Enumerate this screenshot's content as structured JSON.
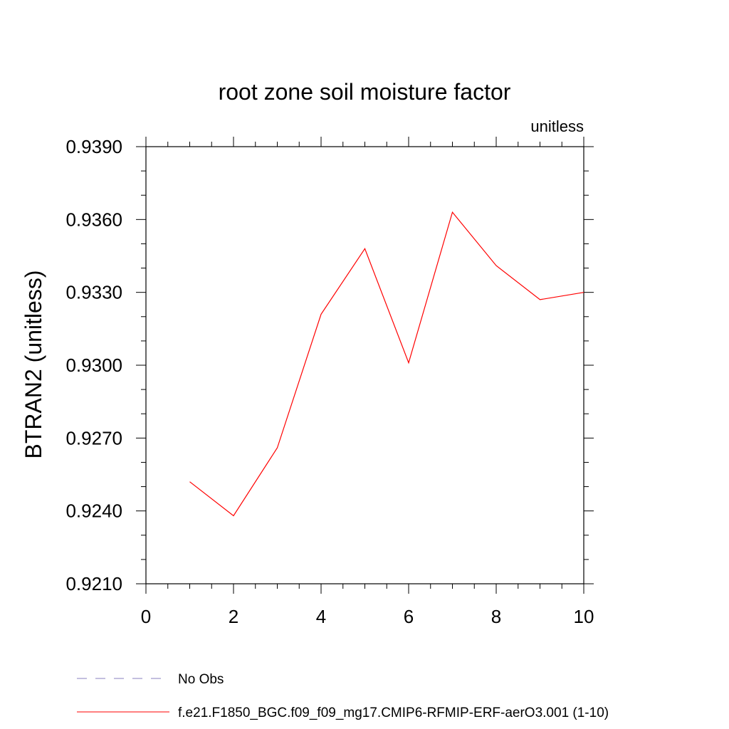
{
  "chart_data": {
    "type": "line",
    "title": "root zone soil moisture factor",
    "units_label": "unitless",
    "ylabel": "BTRAN2  (unitless)",
    "xlabel": "",
    "xlim": [
      0,
      10
    ],
    "ylim": [
      0.921,
      0.939
    ],
    "x_ticks": [
      0,
      2,
      4,
      6,
      8,
      10
    ],
    "x_tick_labels": [
      "0",
      "2",
      "4",
      "6",
      "8",
      "10"
    ],
    "y_ticks": [
      0.921,
      0.924,
      0.927,
      0.93,
      0.933,
      0.936,
      0.939
    ],
    "y_tick_labels": [
      "0.9210",
      "0.9240",
      "0.9270",
      "0.9300",
      "0.9330",
      "0.9360",
      "0.9390"
    ],
    "grid": false,
    "legend_position": "bottom",
    "series": [
      {
        "name": "f.e21.F1850_BGC.f09_f09_mg17.CMIP6-RFMIP-ERF-aerO3.001 (1-10)",
        "color": "#ff0000",
        "dash": "solid",
        "x": [
          1,
          2,
          3,
          4,
          5,
          6,
          7,
          8,
          9,
          10
        ],
        "values": [
          0.9252,
          0.9238,
          0.9266,
          0.9321,
          0.9348,
          0.9301,
          0.9363,
          0.9341,
          0.9327,
          0.933
        ]
      }
    ],
    "legend": [
      {
        "label": "No Obs",
        "color": "#8a7fbf",
        "dash": "dashed"
      },
      {
        "label": "f.e21.F1850_BGC.f09_f09_mg17.CMIP6-RFMIP-ERF-aerO3.001 (1-10)",
        "color": "#ff0000",
        "dash": "solid"
      }
    ]
  }
}
